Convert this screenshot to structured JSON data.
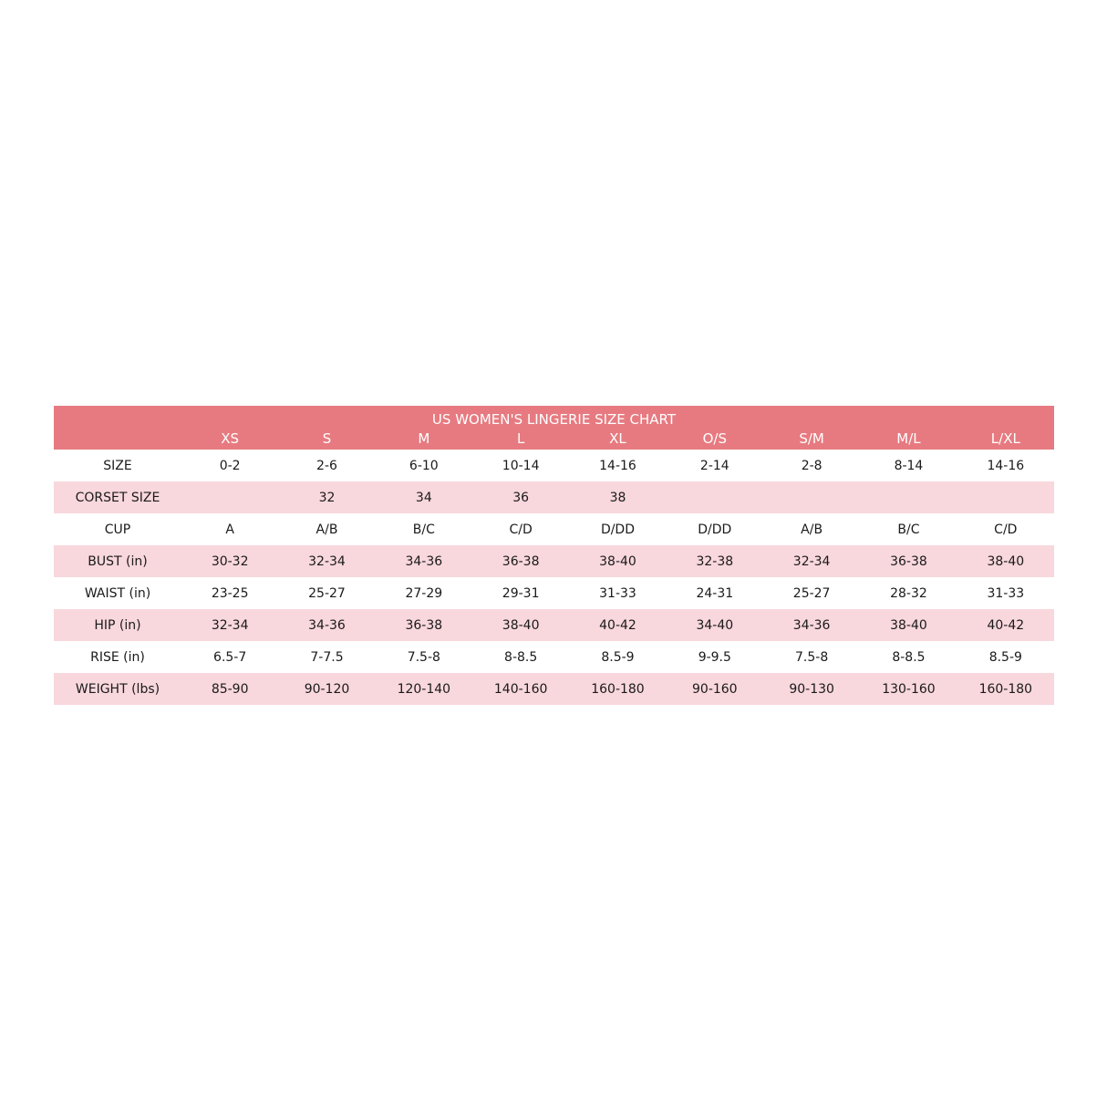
{
  "title": "US WOMEN'S LINGERIE SIZE CHART",
  "colors": {
    "header": "#E77A80",
    "stripe": "#F8D7DD"
  },
  "columns": [
    "XS",
    "S",
    "M",
    "L",
    "XL",
    "O/S",
    "S/M",
    "M/L",
    "L/XL"
  ],
  "rows": [
    {
      "label": "SIZE",
      "values": [
        "0-2",
        "2-6",
        "6-10",
        "10-14",
        "14-16",
        "2-14",
        "2-8",
        "8-14",
        "14-16"
      ]
    },
    {
      "label": "CORSET SIZE",
      "values": [
        "",
        "32",
        "34",
        "36",
        "38",
        "",
        "",
        "",
        ""
      ]
    },
    {
      "label": "CUP",
      "values": [
        "A",
        "A/B",
        "B/C",
        "C/D",
        "D/DD",
        "D/DD",
        "A/B",
        "B/C",
        "C/D"
      ]
    },
    {
      "label": "BUST (in)",
      "values": [
        "30-32",
        "32-34",
        "34-36",
        "36-38",
        "38-40",
        "32-38",
        "32-34",
        "36-38",
        "38-40"
      ]
    },
    {
      "label": "WAIST (in)",
      "values": [
        "23-25",
        "25-27",
        "27-29",
        "29-31",
        "31-33",
        "24-31",
        "25-27",
        "28-32",
        "31-33"
      ]
    },
    {
      "label": "HIP (in)",
      "values": [
        "32-34",
        "34-36",
        "36-38",
        "38-40",
        "40-42",
        "34-40",
        "34-36",
        "38-40",
        "40-42"
      ]
    },
    {
      "label": "RISE (in)",
      "values": [
        "6.5-7",
        "7-7.5",
        "7.5-8",
        "8-8.5",
        "8.5-9",
        "9-9.5",
        "7.5-8",
        "8-8.5",
        "8.5-9"
      ]
    },
    {
      "label": "WEIGHT (lbs)",
      "values": [
        "85-90",
        "90-120",
        "120-140",
        "140-160",
        "160-180",
        "90-160",
        "90-130",
        "130-160",
        "160-180"
      ]
    }
  ]
}
